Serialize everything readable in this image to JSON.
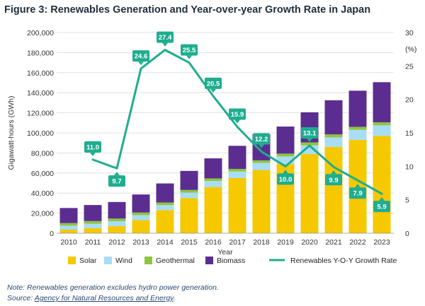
{
  "figure_title": "Figure 3: Renewables Generation and Year-over-year Growth Rate in Japan",
  "chart_data": {
    "type": "bar",
    "stacked": true,
    "title": "Figure 3: Renewables Generation and Year-over-year Growth Rate in Japan",
    "xlabel": "Year",
    "ylabel": "Gigawatt-hours (GWh)",
    "y2label": "(%)",
    "ylim": [
      0,
      200000
    ],
    "y2lim": [
      0,
      30
    ],
    "yticks": [
      "0",
      "20,000",
      "40,000",
      "60,000",
      "80,000",
      "100,000",
      "120,000",
      "140,000",
      "160,000",
      "180,000",
      "200,000"
    ],
    "y2ticks": [
      "0",
      "5",
      "10",
      "15",
      "20",
      "25",
      "30"
    ],
    "categories": [
      "2010",
      "2011",
      "2012",
      "2013",
      "2014",
      "2015",
      "2016",
      "2017",
      "2018",
      "2019",
      "2020",
      "2021",
      "2022",
      "2023"
    ],
    "series": [
      {
        "name": "Solar",
        "color": "#f5c800",
        "values": [
          3500,
          5000,
          7000,
          13000,
          23000,
          35000,
          46000,
          55000,
          63000,
          69000,
          79000,
          86000,
          93000,
          97000
        ]
      },
      {
        "name": "Wind",
        "color": "#a8ddf3",
        "values": [
          4000,
          4500,
          5000,
          5000,
          5000,
          5500,
          6000,
          6500,
          7000,
          7500,
          8500,
          9500,
          10000,
          10500
        ]
      },
      {
        "name": "Geothermal",
        "color": "#8cc63f",
        "values": [
          2600,
          2600,
          2600,
          2600,
          2600,
          2600,
          2600,
          2600,
          2600,
          2800,
          3000,
          3000,
          3000,
          3000
        ]
      },
      {
        "name": "Biomass",
        "color": "#5c2d91",
        "values": [
          15000,
          16000,
          16500,
          18000,
          19000,
          19000,
          20000,
          23000,
          26000,
          27000,
          30000,
          34000,
          36000,
          40000
        ]
      }
    ],
    "line_series": {
      "name": "Renewables Y-O-Y Growth Rate",
      "color": "#1fad8f",
      "axis": "right",
      "x": [
        "2011",
        "2012",
        "2013",
        "2014",
        "2015",
        "2016",
        "2017",
        "2018",
        "2019",
        "2020",
        "2021",
        "2022",
        "2023"
      ],
      "values": [
        11.0,
        9.7,
        24.6,
        27.4,
        25.5,
        20.5,
        15.9,
        12.2,
        10.0,
        13.1,
        9.9,
        7.9,
        5.9
      ],
      "labels": [
        "11.0",
        "9.7",
        "24.6",
        "27.4",
        "25.5",
        "20.5",
        "15.9",
        "12.2",
        "10.0",
        "13.1",
        "9.9",
        "7.9",
        "5.9"
      ],
      "label_positions": [
        "above",
        "below",
        "above",
        "above",
        "above",
        "above",
        "above",
        "above",
        "below",
        "above",
        "below",
        "below",
        "below"
      ]
    },
    "legend": {
      "position": "bottom",
      "items": [
        "Solar",
        "Wind",
        "Geothermal",
        "Biomass",
        "Renewables Y-O-Y Growth Rate"
      ]
    }
  },
  "note": {
    "text": "Note: Renewables generation excludes hydro power generation.",
    "source_prefix": "Source: ",
    "source_link": "Agency for Natural Resources and Energy",
    "source_suffix": "."
  }
}
